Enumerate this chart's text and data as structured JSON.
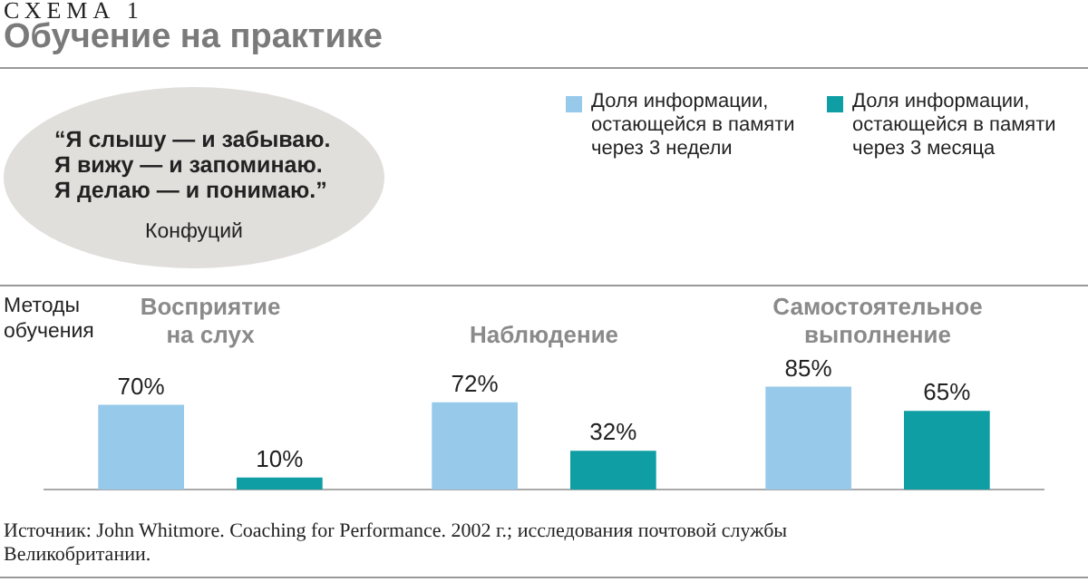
{
  "chart_data": {
    "type": "bar",
    "title": "Обучение на практике",
    "xlabel": "Методы обучения",
    "annotations": [
      "СХЕМА 1",
      "“Я слышу — и забываю.\nЯ вижу — и запоминаю.\nЯ делаю — и понимаю.”",
      "Конфуций",
      "Источник: John Whitmore. Coaching for Performance. 2002 г.; исследования почтовой службы Великобритании."
    ],
    "categories": [
      "Восприятие на слух",
      "Наблюдение",
      "Самостоятельное выполнение"
    ],
    "series": [
      {
        "name": "Доля информации, остающейся в памяти через 3 недели",
        "color": "#97c9ea",
        "values": [
          70,
          72,
          85
        ],
        "value_labels": [
          "70%",
          "72%",
          "85%"
        ]
      },
      {
        "name": "Доля информации, остающейся в памяти через 3 месяца",
        "color": "#0f9ea3",
        "values": [
          10,
          32,
          65
        ],
        "value_labels": [
          "10%",
          "32%",
          "65%"
        ]
      }
    ],
    "legend": "top right"
  }
}
